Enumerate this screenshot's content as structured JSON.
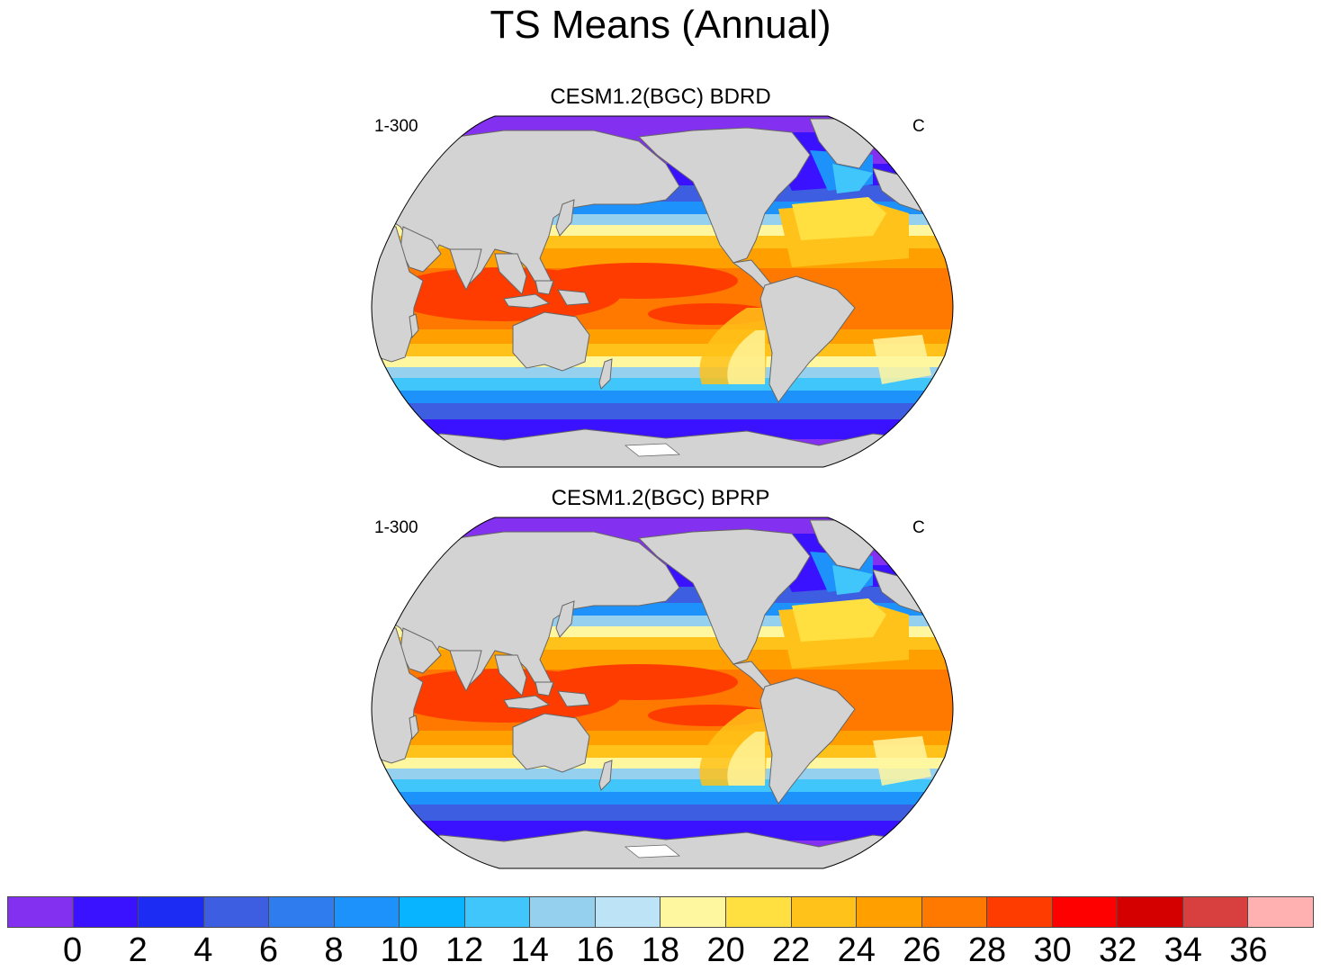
{
  "title": "TS Means (Annual)",
  "panels": [
    {
      "subtitle": "CESM1.2(BGC) BDRD",
      "left_label": "1-300",
      "right_label": "C"
    },
    {
      "subtitle": "CESM1.2(BGC) BPRP",
      "left_label": "1-300",
      "right_label": "C"
    }
  ],
  "projection": "Robinson (Pacific-centered)",
  "colorbar": {
    "labels": [
      "0",
      "2",
      "4",
      "6",
      "8",
      "10",
      "12",
      "14",
      "16",
      "18",
      "20",
      "22",
      "24",
      "26",
      "28",
      "30",
      "32",
      "34",
      "36"
    ],
    "colors": [
      "#8430f0",
      "#3a12ff",
      "#1d2cf2",
      "#3d5ee0",
      "#2e7cee",
      "#1e92fb",
      "#08b3ff",
      "#40c6fa",
      "#95d0ee",
      "#bde4f6",
      "#fff6a0",
      "#ffe040",
      "#ffc21a",
      "#ffa000",
      "#ff7800",
      "#ff3c00",
      "#ff0000",
      "#d40000",
      "#d84040",
      "#ffb0b0"
    ]
  },
  "colors": {
    "land": "#d3d3d3",
    "coast": "#666666"
  }
}
